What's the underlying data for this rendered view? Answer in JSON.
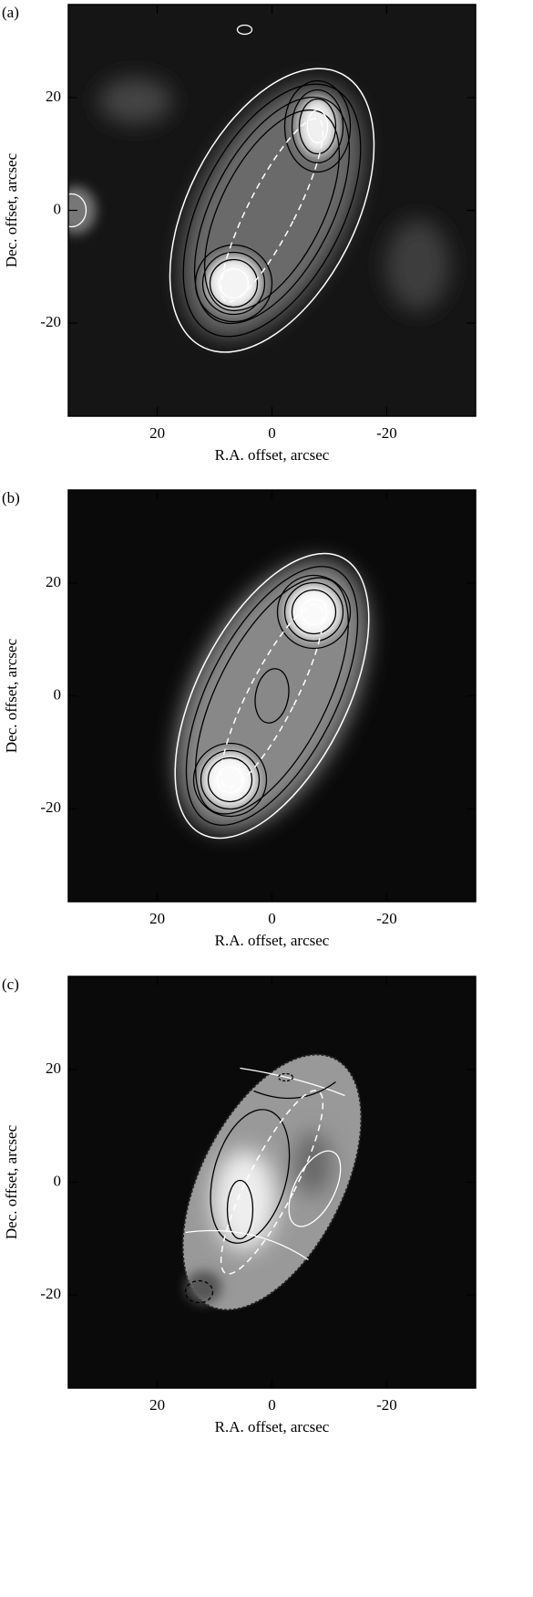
{
  "chart_data": [
    {
      "type": "image",
      "label": "(a)",
      "xlabel": "R.A. offset, arcsec",
      "ylabel": "Dec. offset, arcsec",
      "xlim": [
        35.5,
        -35.5
      ],
      "ylim": [
        -36.5,
        36.5
      ],
      "xticks": [
        20,
        0,
        -20
      ],
      "yticks": [
        -20,
        0,
        20
      ]
    },
    {
      "type": "image",
      "label": "(b)",
      "xlabel": "R.A. offset, arcsec",
      "ylabel": "Dec. offset, arcsec",
      "xlim": [
        35.5,
        -35.5
      ],
      "ylim": [
        -36.5,
        36.5
      ],
      "xticks": [
        20,
        0,
        -20
      ],
      "yticks": [
        -20,
        0,
        20
      ]
    },
    {
      "type": "image",
      "label": "(c)",
      "xlabel": "R.A. offset, arcsec",
      "ylabel": "Dec. offset, arcsec",
      "xlim": [
        35.5,
        -35.5
      ],
      "ylim": [
        -36.5,
        36.5
      ],
      "xticks": [
        20,
        0,
        -20
      ],
      "yticks": [
        -20,
        0,
        20
      ]
    }
  ]
}
